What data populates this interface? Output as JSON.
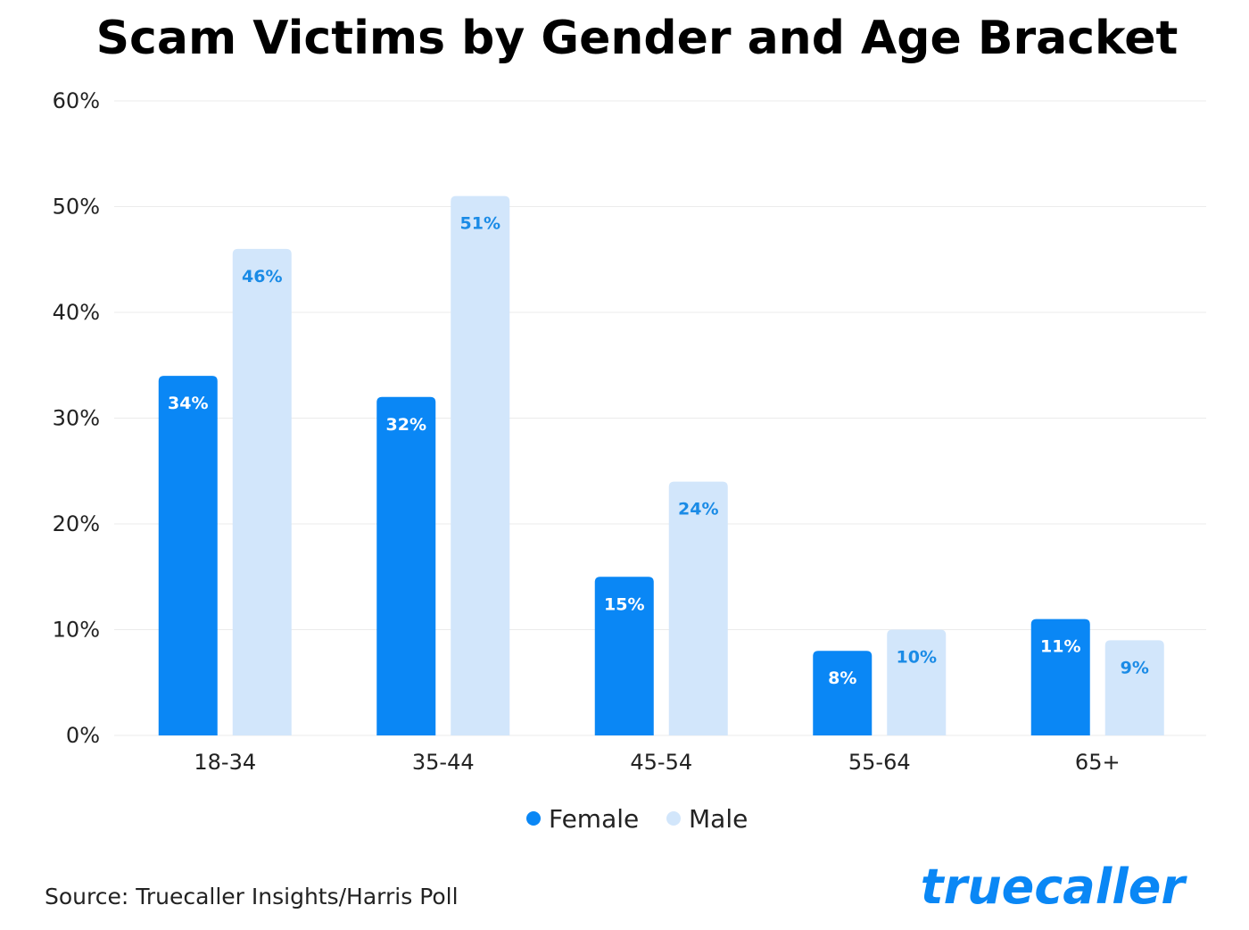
{
  "chart_data": {
    "type": "bar",
    "title": "Scam Victims by Gender and Age Bracket",
    "categories": [
      "18-34",
      "35-44",
      "45-54",
      "55-64",
      "65+"
    ],
    "series": [
      {
        "name": "Female",
        "values": [
          34,
          32,
          15,
          8,
          11
        ],
        "labels": [
          "34%",
          "32%",
          "15%",
          "8%",
          "11%"
        ],
        "color": "#0a87f5",
        "label_color": "#ffffff"
      },
      {
        "name": "Male",
        "values": [
          46,
          51,
          24,
          10,
          9
        ],
        "labels": [
          "46%",
          "51%",
          "24%",
          "10%",
          "9%"
        ],
        "color": "#d2e6fb",
        "label_color": "#1a8be6"
      }
    ],
    "yticks": [
      0,
      10,
      20,
      30,
      40,
      50,
      60
    ],
    "ytick_labels": [
      "0%",
      "10%",
      "20%",
      "30%",
      "40%",
      "50%",
      "60%"
    ],
    "ylim": [
      0,
      60
    ],
    "grid": true,
    "legend_position": "bottom-center"
  },
  "footer": {
    "source": "Source: Truecaller Insights/Harris Poll",
    "brand": "truecaller",
    "brand_color": "#0a87f5"
  }
}
